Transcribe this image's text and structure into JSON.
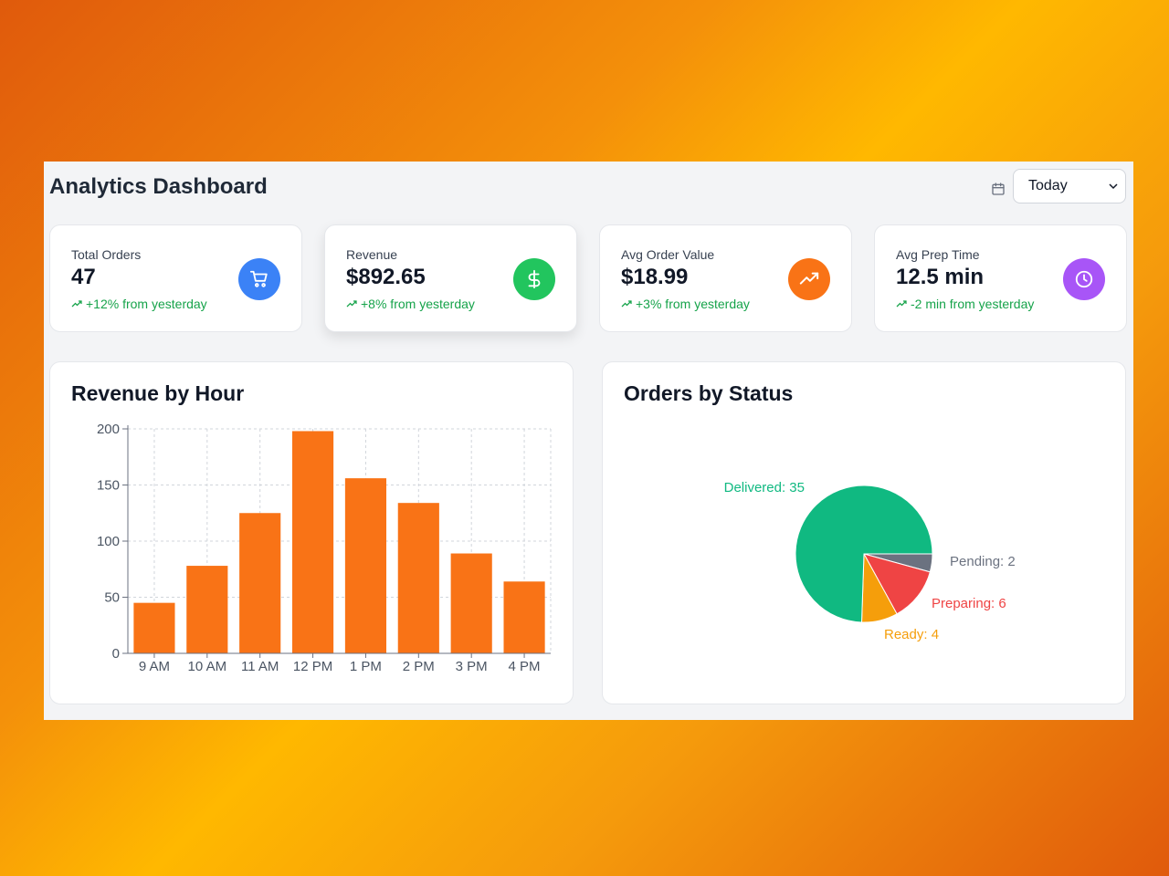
{
  "header": {
    "title": "Analytics Dashboard",
    "date_filter": "Today"
  },
  "stats": [
    {
      "label": "Total Orders",
      "value": "47",
      "change": "+12% from yesterday",
      "icon": "cart-icon",
      "color": "#3b82f6"
    },
    {
      "label": "Revenue",
      "value": "$892.65",
      "change": "+8% from yesterday",
      "icon": "dollar-icon",
      "color": "#22c55e"
    },
    {
      "label": "Avg Order Value",
      "value": "$18.99",
      "change": "+3% from yesterday",
      "icon": "trending-up-icon",
      "color": "#f97316"
    },
    {
      "label": "Avg Prep Time",
      "value": "12.5 min",
      "change": "-2 min from yesterday",
      "icon": "clock-icon",
      "color": "#a855f7"
    }
  ],
  "revenue_chart": {
    "title": "Revenue by Hour"
  },
  "status_chart": {
    "title": "Orders by Status"
  },
  "chart_data": [
    {
      "type": "bar",
      "title": "Revenue by Hour",
      "categories": [
        "9 AM",
        "10 AM",
        "11 AM",
        "12 PM",
        "1 PM",
        "2 PM",
        "3 PM",
        "4 PM"
      ],
      "values": [
        45,
        78,
        125,
        198,
        156,
        134,
        89,
        64
      ],
      "ylim": [
        0,
        200
      ],
      "yticks": [
        0,
        50,
        100,
        150,
        200
      ],
      "grid": true,
      "color": "#f97316"
    },
    {
      "type": "pie",
      "title": "Orders by Status",
      "slices": [
        {
          "label": "Delivered: 35",
          "value": 35,
          "color": "#10b981"
        },
        {
          "label": "Pending: 2",
          "value": 2,
          "color": "#6b7280"
        },
        {
          "label": "Preparing: 6",
          "value": 6,
          "color": "#ef4444"
        },
        {
          "label": "Ready: 4",
          "value": 4,
          "color": "#f59e0b"
        }
      ]
    }
  ]
}
